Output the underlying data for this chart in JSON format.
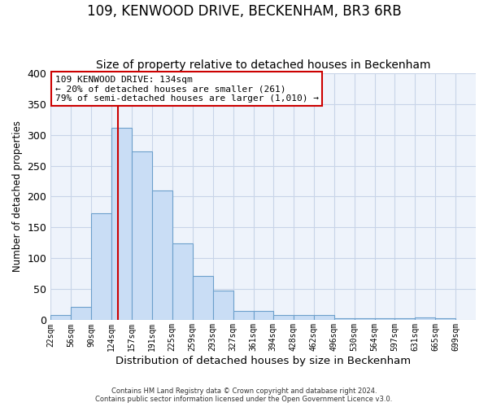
{
  "title": "109, KENWOOD DRIVE, BECKENHAM, BR3 6RB",
  "subtitle": "Size of property relative to detached houses in Beckenham",
  "bar_left_edges": [
    22,
    56,
    90,
    124,
    157,
    191,
    225,
    259,
    293,
    327,
    361,
    394,
    428,
    462,
    496,
    530,
    564,
    597,
    631,
    665
  ],
  "bar_widths": [
    34,
    34,
    34,
    33,
    34,
    34,
    34,
    34,
    34,
    34,
    33,
    34,
    34,
    34,
    34,
    34,
    33,
    34,
    34,
    34
  ],
  "bar_heights": [
    8,
    22,
    173,
    311,
    273,
    210,
    124,
    72,
    48,
    15,
    15,
    8,
    8,
    8,
    3,
    3,
    3,
    3,
    5,
    3
  ],
  "bar_color": "#c9ddf5",
  "bar_edge_color": "#6da0cc",
  "property_line_x": 134,
  "property_line_color": "#cc0000",
  "xlim": [
    22,
    733
  ],
  "ylim": [
    0,
    400
  ],
  "yticks": [
    0,
    50,
    100,
    150,
    200,
    250,
    300,
    350,
    400
  ],
  "xtick_labels": [
    "22sqm",
    "56sqm",
    "90sqm",
    "124sqm",
    "157sqm",
    "191sqm",
    "225sqm",
    "259sqm",
    "293sqm",
    "327sqm",
    "361sqm",
    "394sqm",
    "428sqm",
    "462sqm",
    "496sqm",
    "530sqm",
    "564sqm",
    "597sqm",
    "631sqm",
    "665sqm",
    "699sqm"
  ],
  "xtick_positions": [
    22,
    56,
    90,
    124,
    157,
    191,
    225,
    259,
    293,
    327,
    361,
    394,
    428,
    462,
    496,
    530,
    564,
    597,
    631,
    665,
    699
  ],
  "xlabel": "Distribution of detached houses by size in Beckenham",
  "ylabel": "Number of detached properties",
  "grid_color": "#c8d4e8",
  "annotation_title": "109 KENWOOD DRIVE: 134sqm",
  "annotation_line1": "← 20% of detached houses are smaller (261)",
  "annotation_line2": "79% of semi-detached houses are larger (1,010) →",
  "annotation_box_color": "#ffffff",
  "annotation_box_edge": "#cc0000",
  "footer1": "Contains HM Land Registry data © Crown copyright and database right 2024.",
  "footer2": "Contains public sector information licensed under the Open Government Licence v3.0.",
  "bg_color": "#ffffff",
  "plot_bg_color": "#eef3fb",
  "title_fontsize": 12,
  "subtitle_fontsize": 10
}
